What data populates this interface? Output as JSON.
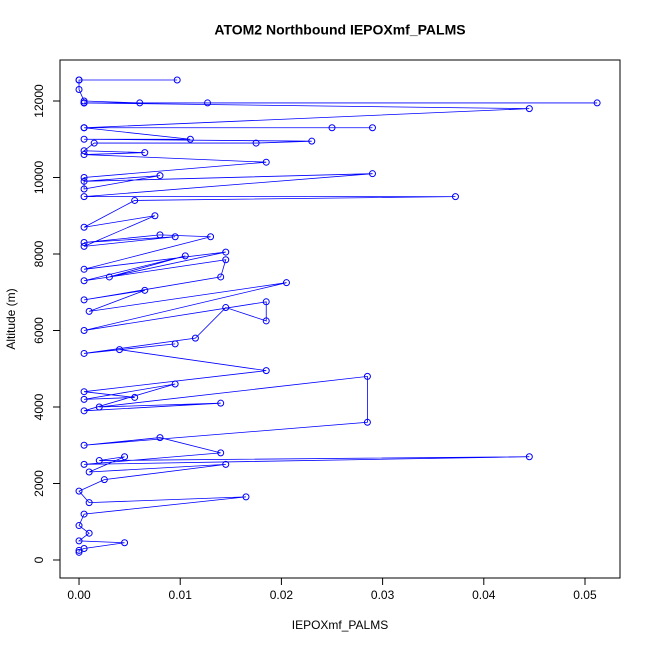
{
  "chart_data": {
    "type": "line",
    "title": "ATOM2 Northbound IEPOXmf_PALMS",
    "xlabel": "IEPOXmf_PALMS",
    "ylabel": "Altitude (m)",
    "color": "#0000ff",
    "markers": "open-circle",
    "xlim": [
      -0.00188,
      0.05346
    ],
    "ylim": [
      -471,
      13072
    ],
    "xticks": [
      {
        "value": 0,
        "label": "0.00"
      },
      {
        "value": 0.01,
        "label": "0.01"
      },
      {
        "value": 0.02,
        "label": "0.02"
      },
      {
        "value": 0.03,
        "label": "0.03"
      },
      {
        "value": 0.04,
        "label": "0.04"
      },
      {
        "value": 0.05,
        "label": "0.05"
      }
    ],
    "yticks": [
      0,
      2000,
      4000,
      6000,
      8000,
      10000,
      12000
    ],
    "x": [
      0,
      0,
      0.0005,
      0.0045,
      0,
      0.001,
      0,
      0.0005,
      0.0165,
      0.001,
      0,
      0.0025,
      0.0145,
      0.001,
      0.0045,
      0.002,
      0.0445,
      0.0005,
      0.014,
      0.008,
      0.0005,
      0.0285,
      0.0285,
      0.002,
      0.014,
      0.0005,
      0.0095,
      0.0005,
      0.0055,
      0.0005,
      0.0185,
      0.004,
      0.0095,
      0.0005,
      0.0115,
      0.0145,
      0.0185,
      0.0185,
      0.0005,
      0.0205,
      0.001,
      0.0065,
      0.0005,
      0.014,
      0.0145,
      0.0005,
      0.0105,
      0.003,
      0.0145,
      0.0005,
      0.013,
      0.008,
      0.0005,
      0.0095,
      0.0005,
      0.0075,
      0.0005,
      0.0055,
      0.0372,
      0.0005,
      0.029,
      0.0005,
      0.008,
      0.0005,
      0.0005,
      0.0185,
      0.0005,
      0.0065,
      0.0005,
      0.0015,
      0.0175,
      0.023,
      0.0005,
      0.011,
      0.0005,
      0.025,
      0.029,
      0.0005,
      0.0445,
      0.0005,
      0.0512,
      0.0005,
      0.0127,
      0.0005,
      0.006,
      0.0005,
      0,
      0,
      0.0097,
      0
    ],
    "values": [
      200,
      250,
      300,
      450,
      500,
      700,
      900,
      1200,
      1650,
      1500,
      1800,
      2100,
      2500,
      2300,
      2700,
      2600,
      2700,
      2500,
      2800,
      3200,
      3000,
      3600,
      4800,
      4000,
      4100,
      3900,
      4600,
      4200,
      4250,
      4400,
      4950,
      5500,
      5650,
      5400,
      5800,
      6600,
      6250,
      6750,
      6000,
      7250,
      6500,
      7050,
      6800,
      7400,
      7850,
      7300,
      7950,
      7400,
      8050,
      7600,
      8450,
      8500,
      8300,
      8450,
      8200,
      9000,
      8700,
      9400,
      9500,
      9500,
      10100,
      9900,
      10050,
      9700,
      10000,
      10400,
      10600,
      10650,
      10700,
      10900,
      10900,
      10950,
      11000,
      11000,
      11300,
      11300,
      11300,
      11300,
      11800,
      11950,
      11950,
      11950,
      11950,
      11950,
      11950,
      12000,
      12300,
      12550,
      12550,
      12550
    ]
  }
}
